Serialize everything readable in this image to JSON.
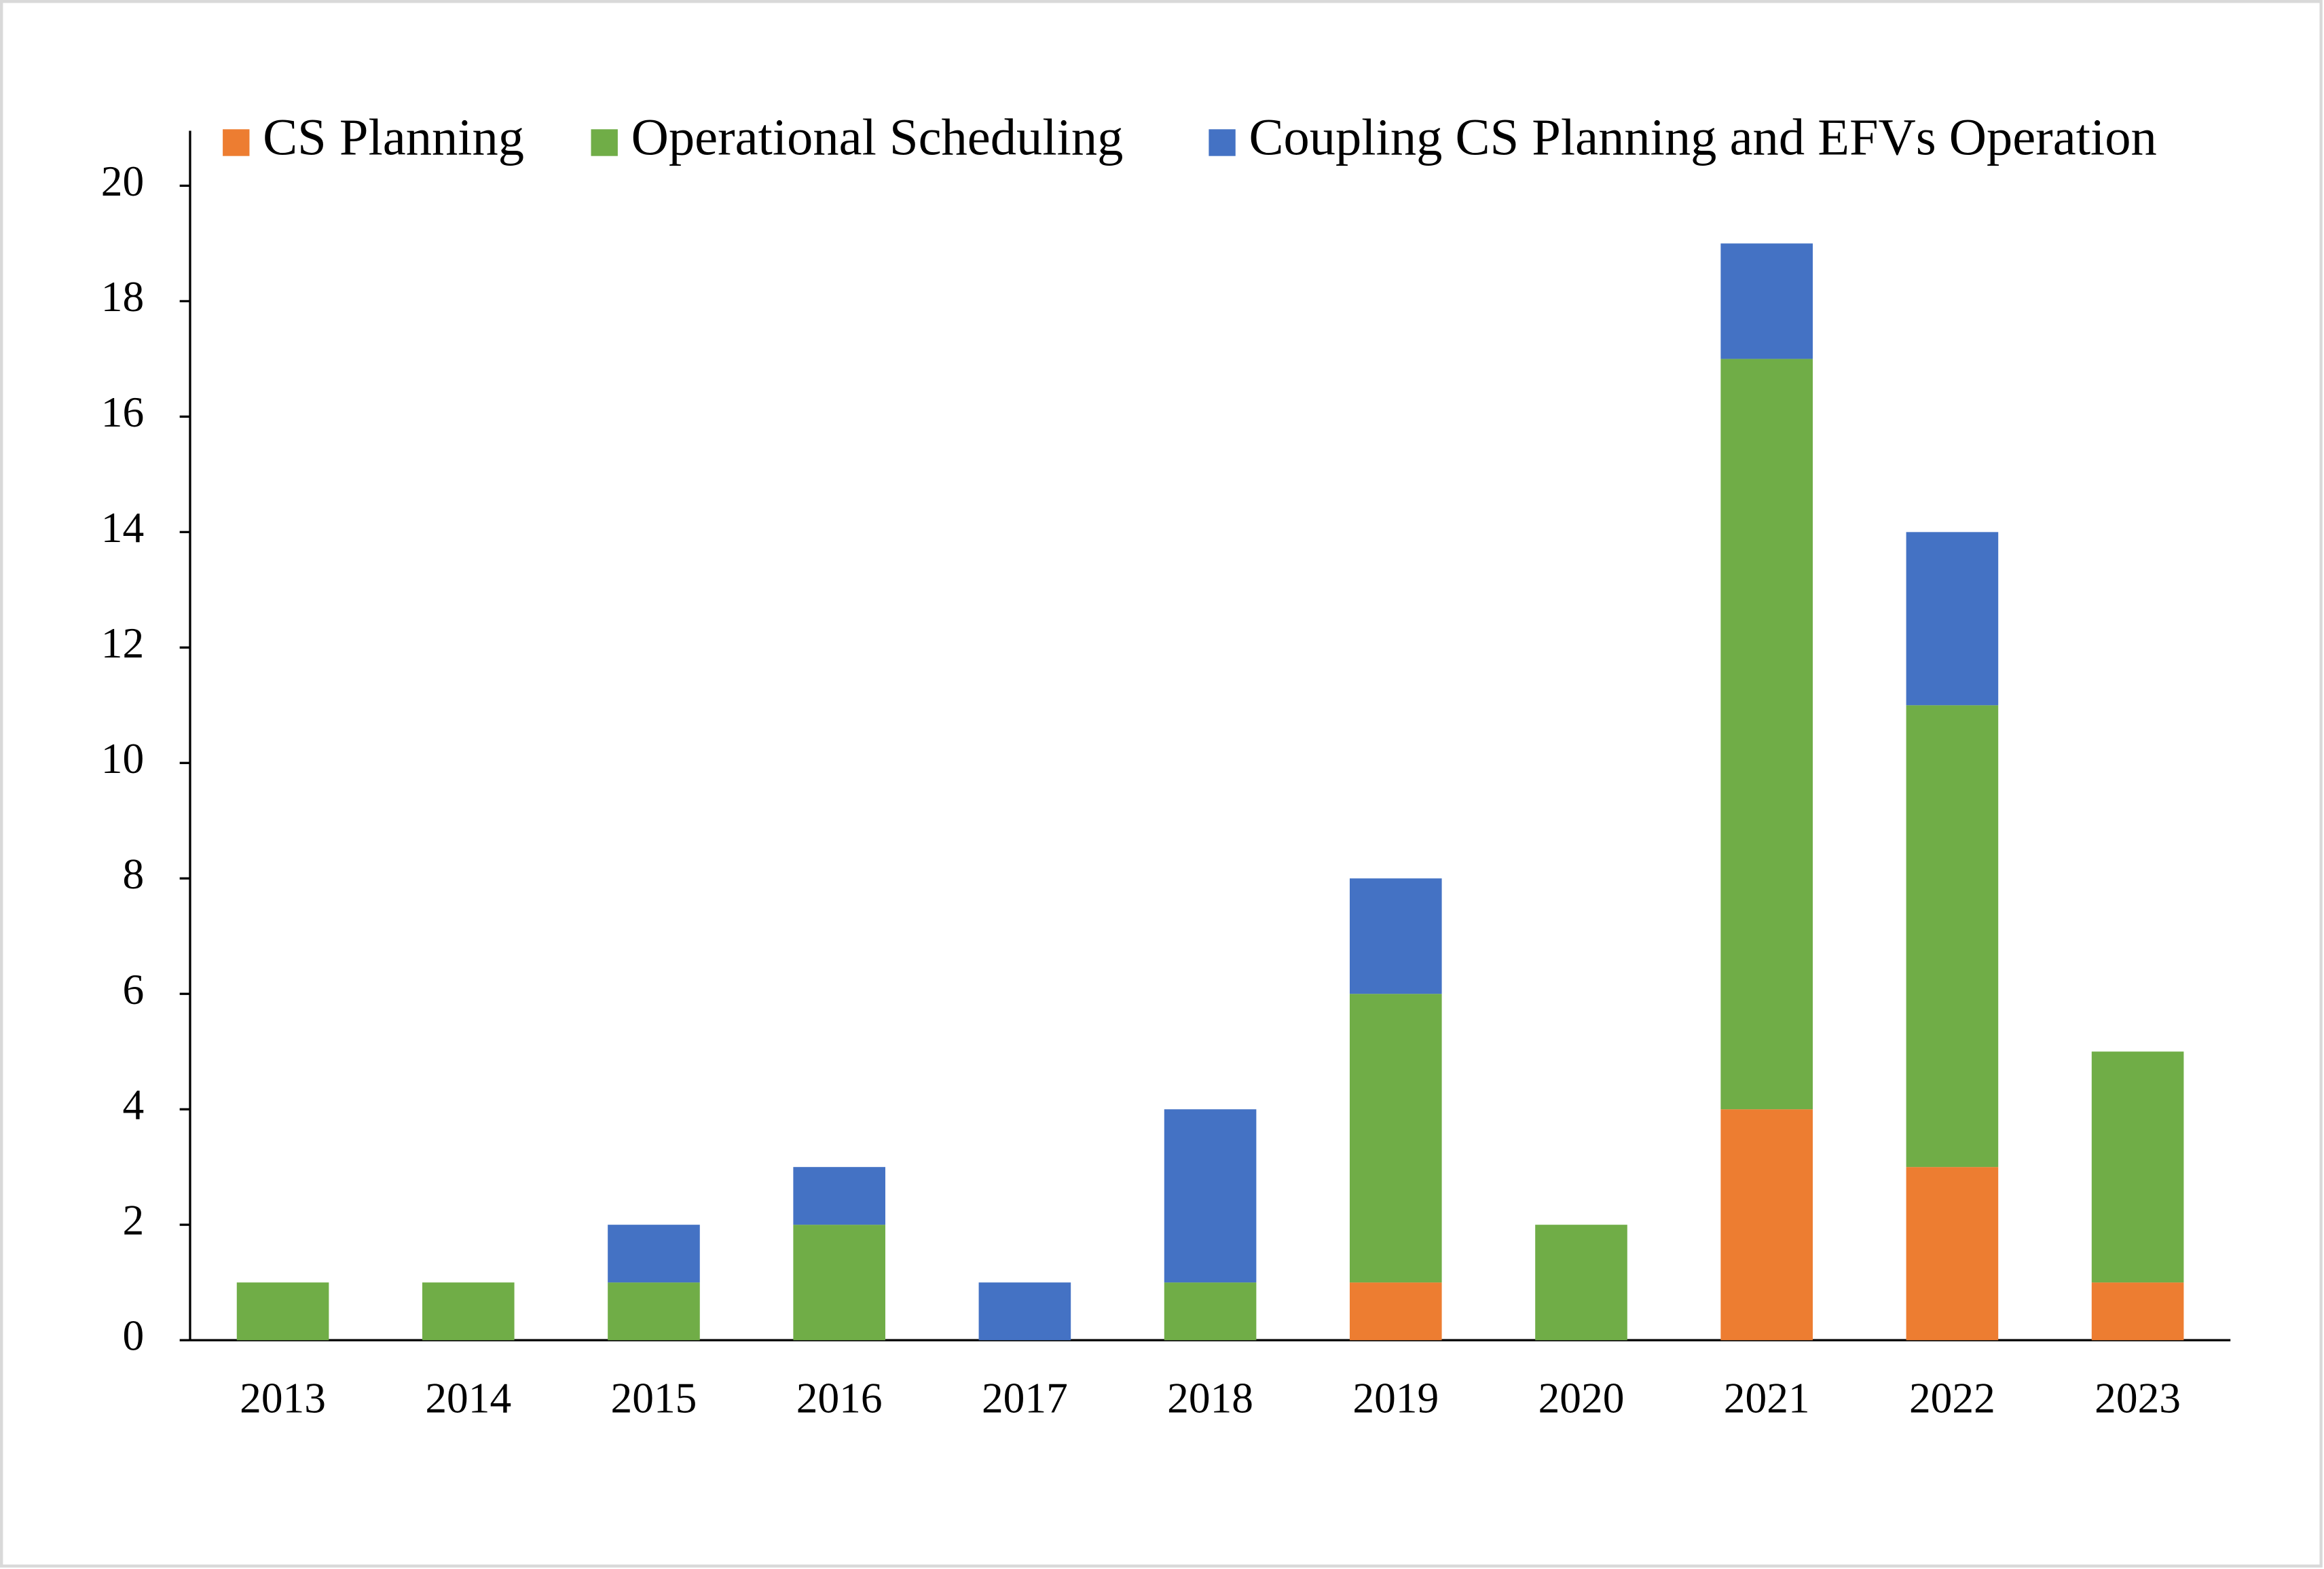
{
  "chart_data": {
    "type": "stacked-bar",
    "categories": [
      "2013",
      "2014",
      "2015",
      "2016",
      "2017",
      "2018",
      "2019",
      "2020",
      "2021",
      "2022",
      "2023"
    ],
    "series": [
      {
        "name": "CS Planning",
        "color": "#ed7d31",
        "values": [
          0,
          0,
          0,
          0,
          0,
          0,
          1,
          0,
          4,
          3,
          1
        ]
      },
      {
        "name": "Operational Scheduling",
        "color": "#70ad47",
        "values": [
          1,
          1,
          1,
          2,
          0,
          1,
          5,
          2,
          13,
          8,
          4
        ]
      },
      {
        "name": "Coupling CS Planning and EFVs Operation",
        "color": "#4472c4",
        "values": [
          0,
          0,
          1,
          1,
          1,
          3,
          2,
          0,
          2,
          3,
          0
        ]
      }
    ],
    "ylim": [
      0,
      20
    ],
    "yticks": [
      0,
      2,
      4,
      6,
      8,
      10,
      12,
      14,
      16,
      18,
      20
    ],
    "grid": false,
    "legend": "top"
  }
}
